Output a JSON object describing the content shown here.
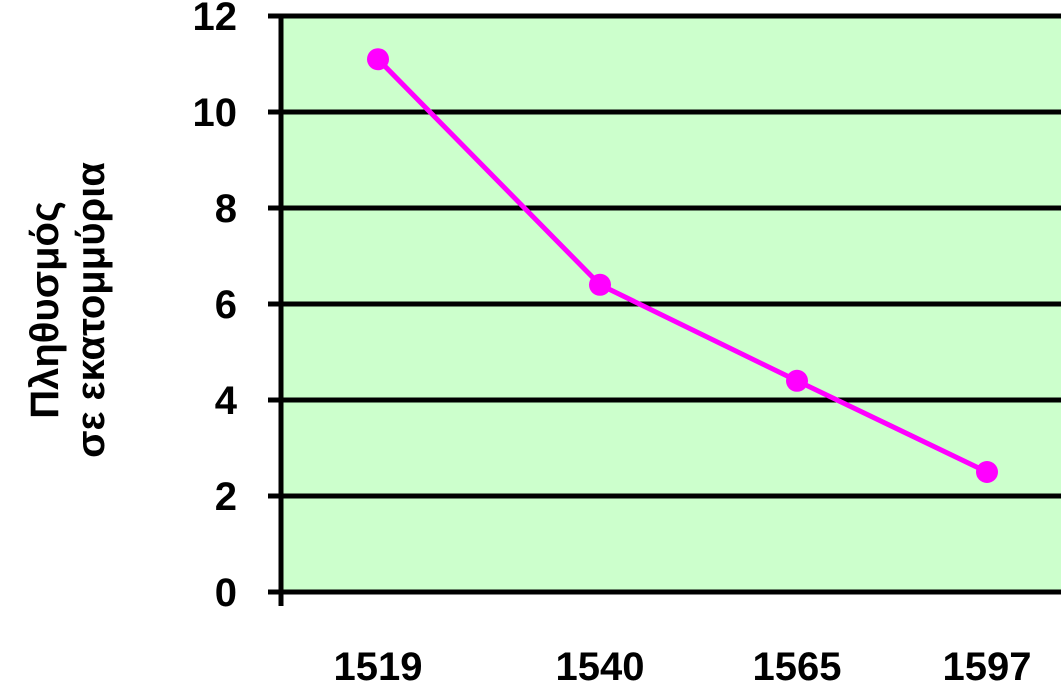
{
  "chart_data": {
    "type": "line",
    "title": "",
    "xlabel": "",
    "ylabel_lines": [
      "Πληθυσμός",
      "σε εκατομμύρια"
    ],
    "categories": [
      "1519",
      "1540",
      "1565",
      "1597"
    ],
    "series": [
      {
        "values": [
          11.1,
          6.4,
          4.4,
          2.5
        ]
      }
    ],
    "ylim": [
      0,
      12
    ],
    "yticks": [
      0,
      2,
      4,
      6,
      8,
      10,
      12
    ],
    "grid": true,
    "legend": "none",
    "colors": {
      "plot_background": "#ccffcc",
      "line": "#ff00ff",
      "gridline": "#000000",
      "axis": "#000000"
    }
  }
}
